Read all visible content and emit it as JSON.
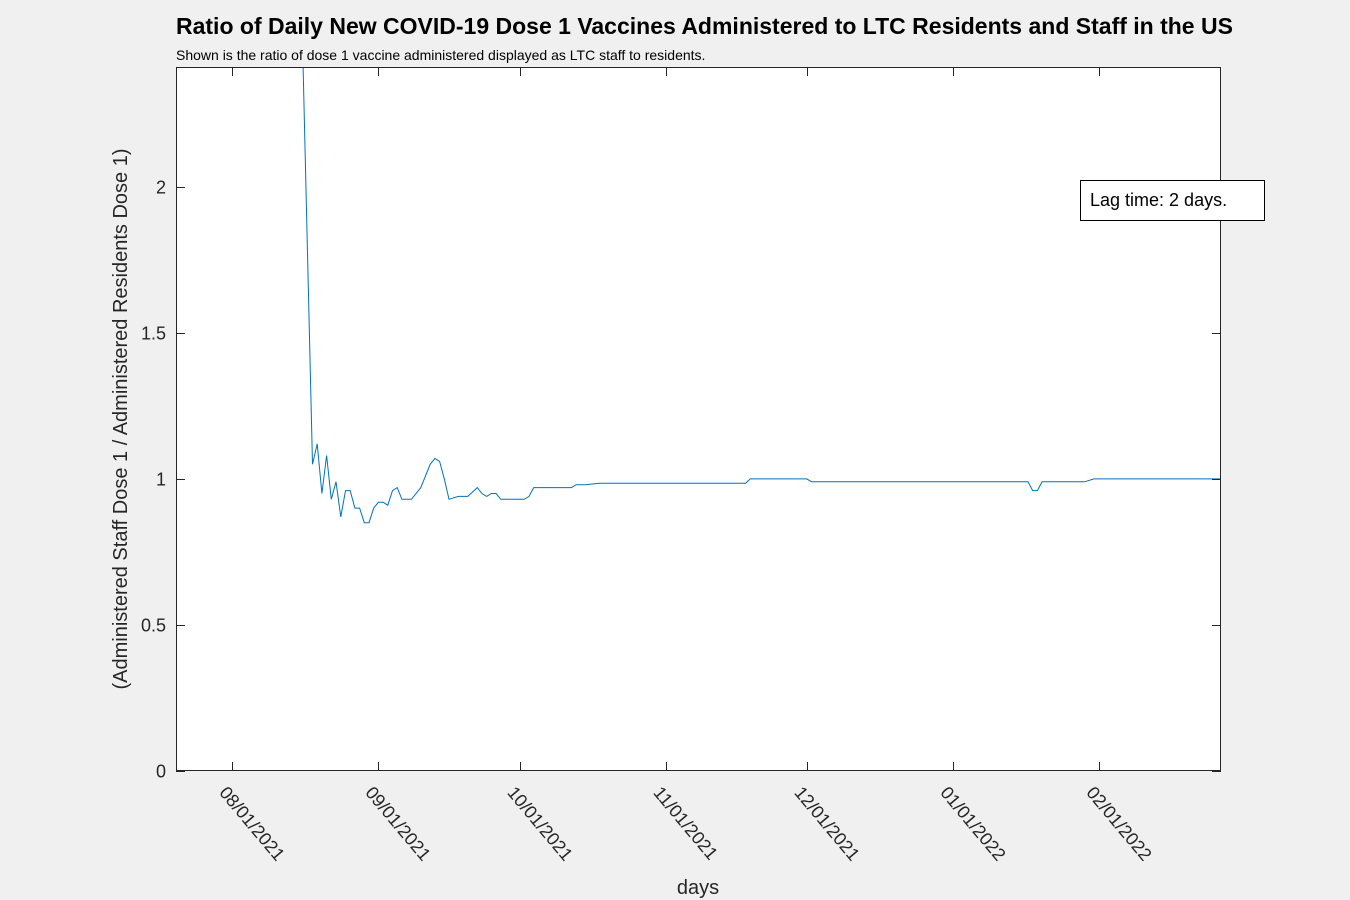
{
  "chart_data": {
    "type": "line",
    "title": "Ratio of Daily New COVID-19 Dose 1 Vaccines Administered to LTC Residents and Staff in the US",
    "subtitle": "Shown is the ratio of dose 1 vaccine administered displayed as LTC staff to residents.",
    "xlabel": "days",
    "ylabel": "(Administered Staff Dose 1 / Administered Residents Dose 1)",
    "xlim": [
      "2021-07-20",
      "2022-02-27"
    ],
    "ylim": [
      0,
      2.41
    ],
    "yticks": [
      0,
      0.5,
      1,
      1.5,
      2
    ],
    "ytick_labels": [
      "0",
      "0.5",
      "1",
      "1.5",
      "2"
    ],
    "xticks": [
      "2021-08-01",
      "2021-09-01",
      "2021-10-01",
      "2021-11-01",
      "2021-12-01",
      "2022-01-01",
      "2022-02-01"
    ],
    "xtick_labels": [
      "08/01/2021",
      "09/01/2021",
      "10/01/2021",
      "11/01/2021",
      "12/01/2021",
      "01/01/2022",
      "02/01/2022"
    ],
    "grid": false,
    "annotation": "Lag time: 2 days.",
    "series": [
      {
        "color": "#0072bd",
        "x": [
          "2021-08-16",
          "2021-08-18",
          "2021-08-19",
          "2021-08-20",
          "2021-08-21",
          "2021-08-22",
          "2021-08-23",
          "2021-08-24",
          "2021-08-25",
          "2021-08-26",
          "2021-08-27",
          "2021-08-28",
          "2021-08-29",
          "2021-08-30",
          "2021-08-31",
          "2021-09-01",
          "2021-09-02",
          "2021-09-03",
          "2021-09-04",
          "2021-09-05",
          "2021-09-06",
          "2021-09-08",
          "2021-09-10",
          "2021-09-12",
          "2021-09-13",
          "2021-09-14",
          "2021-09-15",
          "2021-09-16",
          "2021-09-18",
          "2021-09-20",
          "2021-09-22",
          "2021-09-23",
          "2021-09-24",
          "2021-09-25",
          "2021-09-26",
          "2021-09-27",
          "2021-09-28",
          "2021-09-30",
          "2021-10-02",
          "2021-10-03",
          "2021-10-04",
          "2021-10-06",
          "2021-10-08",
          "2021-10-10",
          "2021-10-12",
          "2021-10-13",
          "2021-10-15",
          "2021-10-18",
          "2021-10-22",
          "2021-10-28",
          "2021-11-01",
          "2021-11-10",
          "2021-11-18",
          "2021-11-19",
          "2021-11-20",
          "2021-11-24",
          "2021-11-29",
          "2021-12-01",
          "2021-12-02",
          "2021-12-10",
          "2021-12-20",
          "2021-12-31",
          "2022-01-10",
          "2022-01-17",
          "2022-01-18",
          "2022-01-19",
          "2022-01-20",
          "2022-01-29",
          "2022-01-31",
          "2022-02-01",
          "2022-02-02",
          "2022-02-10",
          "2022-02-20",
          "2022-02-23",
          "2022-02-25",
          "2022-02-27"
        ],
        "y": [
          2.41,
          1.05,
          1.12,
          0.95,
          1.08,
          0.93,
          0.99,
          0.87,
          0.96,
          0.96,
          0.9,
          0.9,
          0.85,
          0.85,
          0.9,
          0.92,
          0.92,
          0.91,
          0.96,
          0.97,
          0.93,
          0.93,
          0.97,
          1.05,
          1.07,
          1.06,
          1.0,
          0.93,
          0.94,
          0.94,
          0.97,
          0.95,
          0.94,
          0.95,
          0.95,
          0.93,
          0.93,
          0.93,
          0.93,
          0.94,
          0.97,
          0.97,
          0.97,
          0.97,
          0.97,
          0.98,
          0.98,
          0.985,
          0.985,
          0.985,
          0.985,
          0.985,
          0.985,
          1.0,
          1.0,
          1.0,
          1.0,
          1.0,
          0.99,
          0.99,
          0.99,
          0.99,
          0.99,
          0.99,
          0.96,
          0.96,
          0.99,
          0.99,
          1.0,
          1.0,
          1.0,
          1.0,
          1.0,
          1.0,
          1.0,
          1.0
        ]
      }
    ]
  }
}
